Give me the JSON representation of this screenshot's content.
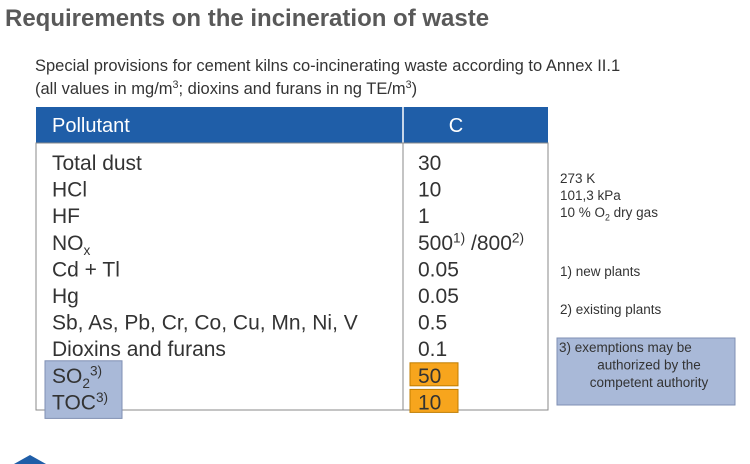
{
  "title": "Requirements on the incineration of waste",
  "subtitle": {
    "line1": "Special provisions for cement kilns co-incinerating waste according to Annex II.1",
    "line2": [
      {
        "text": "(all values in mg/m"
      },
      {
        "text": "3",
        "pos": "sup"
      },
      {
        "text": "; dioxins and furans in ng TE/m"
      },
      {
        "text": "3",
        "pos": "sup"
      },
      {
        "text": ")"
      }
    ]
  },
  "table": {
    "header": [
      "Pollutant",
      "C"
    ],
    "rows": [
      {
        "cells": [
          [
            {
              "text": "Total dust"
            }
          ],
          [
            {
              "text": "30"
            }
          ]
        ]
      },
      {
        "cells": [
          [
            {
              "text": "HCl"
            }
          ],
          [
            {
              "text": "10"
            }
          ]
        ]
      },
      {
        "cells": [
          [
            {
              "text": "HF"
            }
          ],
          [
            {
              "text": "1"
            }
          ]
        ]
      },
      {
        "cells": [
          [
            {
              "text": "NO"
            },
            {
              "text": "x",
              "pos": "sub"
            }
          ],
          [
            {
              "text": "500"
            },
            {
              "text": "1)",
              "pos": "sup"
            },
            {
              "text": " /800"
            },
            {
              "text": "2)",
              "pos": "sup"
            }
          ]
        ]
      },
      {
        "cells": [
          [
            {
              "text": "Cd + Tl"
            }
          ],
          [
            {
              "text": "0.05"
            }
          ]
        ]
      },
      {
        "cells": [
          [
            {
              "text": "Hg"
            }
          ],
          [
            {
              "text": "0.05"
            }
          ]
        ]
      },
      {
        "cells": [
          [
            {
              "text": "Sb, As, Pb, Cr, Co, Cu, Mn, Ni, V"
            }
          ],
          [
            {
              "text": "0.5"
            }
          ]
        ]
      },
      {
        "cells": [
          [
            {
              "text": "Dioxins and furans"
            }
          ],
          [
            {
              "text": "0.1"
            }
          ]
        ]
      },
      {
        "cells": [
          [
            {
              "text": "SO"
            },
            {
              "text": "2",
              "pos": "sub"
            },
            {
              "text": "3)",
              "pos": "sup"
            }
          ],
          [
            {
              "text": "50"
            }
          ]
        ],
        "highlight": true
      },
      {
        "cells": [
          [
            {
              "text": "TOC"
            },
            {
              "text": "3)",
              "pos": "sup"
            }
          ],
          [
            {
              "text": "10"
            }
          ]
        ],
        "highlight": true
      }
    ]
  },
  "conditions": [
    [
      {
        "text": "273 K"
      }
    ],
    [
      {
        "text": "101,3 kPa"
      }
    ],
    [
      {
        "text": "10 % O"
      },
      {
        "text": "2",
        "pos": "sub"
      },
      {
        "text": " dry gas"
      }
    ]
  ],
  "footnotes": {
    "new": "1) new plants",
    "existing": "2) existing plants",
    "exemptions": [
      "3) exemptions may be",
      "authorized by the",
      "competent authority"
    ]
  }
}
